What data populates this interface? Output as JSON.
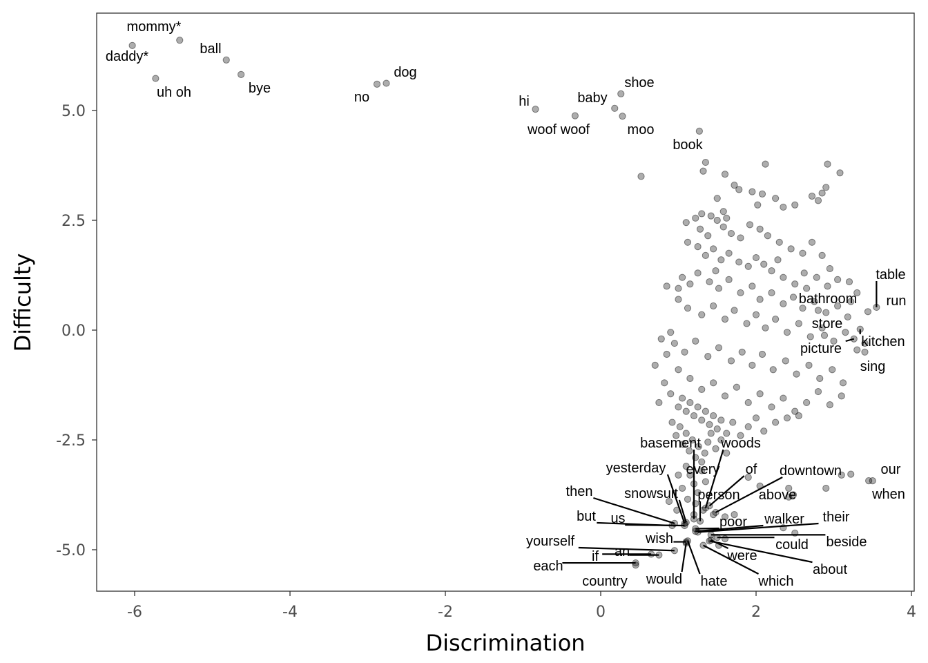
{
  "chart_data": {
    "type": "scatter",
    "title": "",
    "xlabel": "Discrimination",
    "ylabel": "Difficulty",
    "xlim": [
      -6.5,
      4
    ],
    "ylim": [
      -5.85,
      7.2
    ],
    "x_ticks": [
      -6,
      -4,
      -2,
      0,
      2,
      4
    ],
    "x_tick_labels": [
      "-6",
      "-4",
      "-2",
      "0",
      "2",
      "4"
    ],
    "y_ticks": [
      -5,
      -2.5,
      0,
      2.5,
      5
    ],
    "y_tick_labels": [
      "-5.0",
      "-2.5",
      "0.0",
      "2.5",
      "5.0"
    ],
    "grid": false,
    "point_color": "#000000",
    "labeled_points": [
      {
        "label": "mommy*",
        "x": -5.42,
        "y": 6.6
      },
      {
        "label": "daddy*",
        "x": -6.03,
        "y": 6.48
      },
      {
        "label": "uh oh",
        "x": -5.73,
        "y": 5.73
      },
      {
        "label": "ball",
        "x": -4.82,
        "y": 6.15
      },
      {
        "label": "bye",
        "x": -4.63,
        "y": 5.82
      },
      {
        "label": "dog",
        "x": -2.76,
        "y": 5.62
      },
      {
        "label": "no",
        "x": -2.88,
        "y": 5.6
      },
      {
        "label": "hi",
        "x": -0.84,
        "y": 5.03
      },
      {
        "label": "woof woof",
        "x": -0.33,
        "y": 4.88
      },
      {
        "label": "baby",
        "x": 0.18,
        "y": 5.05
      },
      {
        "label": "shoe",
        "x": 0.26,
        "y": 5.38
      },
      {
        "label": "moo",
        "x": 0.28,
        "y": 4.87
      },
      {
        "label": "book",
        "x": 1.27,
        "y": 4.53
      },
      {
        "label": "table",
        "x": 3.55,
        "y": 0.52
      },
      {
        "label": "run",
        "x": 3.44,
        "y": 0.42
      },
      {
        "label": "bathroom",
        "x": 2.8,
        "y": 0.45
      },
      {
        "label": "store",
        "x": 2.88,
        "y": -0.12
      },
      {
        "label": "kitchen",
        "x": 3.34,
        "y": 0.02
      },
      {
        "label": "picture",
        "x": 3.26,
        "y": -0.2
      },
      {
        "label": "sing",
        "x": 3.4,
        "y": -0.5
      },
      {
        "label": "our",
        "x": 3.45,
        "y": -3.43
      },
      {
        "label": "when",
        "x": 3.5,
        "y": -3.43
      },
      {
        "label": "basement",
        "x": 1.2,
        "y": -4.2
      },
      {
        "label": "woods",
        "x": 1.35,
        "y": -4.05
      },
      {
        "label": "yesterday",
        "x": 1.08,
        "y": -4.4
      },
      {
        "label": "every",
        "x": 1.2,
        "y": -4.3
      },
      {
        "label": "of",
        "x": 1.4,
        "y": -4.0
      },
      {
        "label": "downtown",
        "x": 1.48,
        "y": -4.15
      },
      {
        "label": "then",
        "x": 0.95,
        "y": -4.4
      },
      {
        "label": "snowsuit",
        "x": 1.1,
        "y": -4.38
      },
      {
        "label": "person",
        "x": 1.28,
        "y": -4.35
      },
      {
        "label": "above",
        "x": 2.42,
        "y": -3.8
      },
      {
        "label": "but",
        "x": 0.92,
        "y": -4.45
      },
      {
        "label": "us",
        "x": 1.08,
        "y": -4.45
      },
      {
        "label": "poor",
        "x": 1.22,
        "y": -4.52
      },
      {
        "label": "walker",
        "x": 1.22,
        "y": -4.58
      },
      {
        "label": "their",
        "x": 1.25,
        "y": -4.6
      },
      {
        "label": "yourself",
        "x": 0.95,
        "y": -5.02
      },
      {
        "label": "wish",
        "x": 1.1,
        "y": -4.82
      },
      {
        "label": "could",
        "x": 1.5,
        "y": -4.72
      },
      {
        "label": "beside",
        "x": 1.42,
        "y": -4.66
      },
      {
        "label": "if",
        "x": 0.65,
        "y": -5.1
      },
      {
        "label": "an",
        "x": 0.75,
        "y": -5.12
      },
      {
        "label": "were",
        "x": 1.42,
        "y": -4.78
      },
      {
        "label": "about",
        "x": 1.4,
        "y": -4.8
      },
      {
        "label": "each",
        "x": 0.45,
        "y": -5.3
      },
      {
        "label": "would",
        "x": 1.1,
        "y": -4.85
      },
      {
        "label": "hate",
        "x": 1.12,
        "y": -4.8
      },
      {
        "label": "which",
        "x": 1.32,
        "y": -4.9
      },
      {
        "label": "country",
        "x": 0.45,
        "y": -5.35
      }
    ],
    "unlabeled_points": [
      [
        0.52,
        3.5
      ],
      [
        1.32,
        3.62
      ],
      [
        1.35,
        3.82
      ],
      [
        1.6,
        3.55
      ],
      [
        2.12,
        3.78
      ],
      [
        2.92,
        3.78
      ],
      [
        3.08,
        3.58
      ],
      [
        1.72,
        3.3
      ],
      [
        1.78,
        3.2
      ],
      [
        1.95,
        3.15
      ],
      [
        2.08,
        3.1
      ],
      [
        2.02,
        2.85
      ],
      [
        2.25,
        3.0
      ],
      [
        2.35,
        2.8
      ],
      [
        2.5,
        2.85
      ],
      [
        2.72,
        3.05
      ],
      [
        2.8,
        2.95
      ],
      [
        2.85,
        3.12
      ],
      [
        2.9,
        3.25
      ],
      [
        1.5,
        3.0
      ],
      [
        1.1,
        2.45
      ],
      [
        1.22,
        2.55
      ],
      [
        1.3,
        2.65
      ],
      [
        1.42,
        2.6
      ],
      [
        1.5,
        2.5
      ],
      [
        1.58,
        2.35
      ],
      [
        1.68,
        2.2
      ],
      [
        1.8,
        2.1
      ],
      [
        1.92,
        2.4
      ],
      [
        2.05,
        2.3
      ],
      [
        2.15,
        2.15
      ],
      [
        2.3,
        2.0
      ],
      [
        2.45,
        1.85
      ],
      [
        2.6,
        1.75
      ],
      [
        1.12,
        2.0
      ],
      [
        1.25,
        1.9
      ],
      [
        1.35,
        1.7
      ],
      [
        1.45,
        1.85
      ],
      [
        1.55,
        1.6
      ],
      [
        1.65,
        1.75
      ],
      [
        1.78,
        1.55
      ],
      [
        1.9,
        1.45
      ],
      [
        2.0,
        1.65
      ],
      [
        2.1,
        1.5
      ],
      [
        2.2,
        1.35
      ],
      [
        2.35,
        1.2
      ],
      [
        2.5,
        1.05
      ],
      [
        2.65,
        0.95
      ],
      [
        2.78,
        1.2
      ],
      [
        2.92,
        1.0
      ],
      [
        3.05,
        1.15
      ],
      [
        3.2,
        1.1
      ],
      [
        1.05,
        1.2
      ],
      [
        1.15,
        1.05
      ],
      [
        1.25,
        1.3
      ],
      [
        1.4,
        1.1
      ],
      [
        1.52,
        0.95
      ],
      [
        1.65,
        1.15
      ],
      [
        1.8,
        0.85
      ],
      [
        1.95,
        1.0
      ],
      [
        2.05,
        0.7
      ],
      [
        2.2,
        0.85
      ],
      [
        2.35,
        0.6
      ],
      [
        2.48,
        0.75
      ],
      [
        2.6,
        0.5
      ],
      [
        2.75,
        0.65
      ],
      [
        2.9,
        0.4
      ],
      [
        3.05,
        0.55
      ],
      [
        3.18,
        0.3
      ],
      [
        1.0,
        0.7
      ],
      [
        1.12,
        0.5
      ],
      [
        1.3,
        0.35
      ],
      [
        1.45,
        0.55
      ],
      [
        1.6,
        0.25
      ],
      [
        1.72,
        0.45
      ],
      [
        1.88,
        0.15
      ],
      [
        2.0,
        0.35
      ],
      [
        2.12,
        0.05
      ],
      [
        2.25,
        0.25
      ],
      [
        2.4,
        -0.05
      ],
      [
        2.55,
        0.15
      ],
      [
        2.7,
        -0.15
      ],
      [
        2.85,
        0.05
      ],
      [
        3.0,
        -0.25
      ],
      [
        3.15,
        -0.05
      ],
      [
        0.95,
        -0.3
      ],
      [
        1.08,
        -0.5
      ],
      [
        1.22,
        -0.25
      ],
      [
        1.38,
        -0.6
      ],
      [
        1.52,
        -0.4
      ],
      [
        1.68,
        -0.7
      ],
      [
        1.82,
        -0.5
      ],
      [
        1.95,
        -0.8
      ],
      [
        2.08,
        -0.55
      ],
      [
        2.22,
        -0.9
      ],
      [
        2.38,
        -0.7
      ],
      [
        2.52,
        -1.0
      ],
      [
        2.68,
        -0.8
      ],
      [
        2.82,
        -1.1
      ],
      [
        2.98,
        -0.9
      ],
      [
        3.12,
        -1.2
      ],
      [
        0.78,
        -0.2
      ],
      [
        0.85,
        -0.55
      ],
      [
        1.0,
        -0.9
      ],
      [
        1.15,
        -1.1
      ],
      [
        1.3,
        -1.35
      ],
      [
        1.45,
        -1.2
      ],
      [
        1.6,
        -1.5
      ],
      [
        1.75,
        -1.3
      ],
      [
        1.9,
        -1.65
      ],
      [
        2.05,
        -1.45
      ],
      [
        2.2,
        -1.75
      ],
      [
        2.35,
        -1.55
      ],
      [
        2.5,
        -1.85
      ],
      [
        2.65,
        -1.65
      ],
      [
        2.8,
        -1.4
      ],
      [
        2.95,
        -1.7
      ],
      [
        3.1,
        -1.5
      ],
      [
        0.75,
        -1.65
      ],
      [
        0.9,
        -1.45
      ],
      [
        1.0,
        -1.75
      ],
      [
        1.05,
        -1.55
      ],
      [
        1.1,
        -1.85
      ],
      [
        1.15,
        -1.65
      ],
      [
        1.2,
        -1.95
      ],
      [
        1.25,
        -1.75
      ],
      [
        1.3,
        -2.05
      ],
      [
        1.35,
        -1.85
      ],
      [
        1.4,
        -2.15
      ],
      [
        1.45,
        -1.95
      ],
      [
        1.5,
        -2.25
      ],
      [
        1.55,
        -2.05
      ],
      [
        1.62,
        -2.35
      ],
      [
        1.7,
        -2.1
      ],
      [
        1.8,
        -2.4
      ],
      [
        1.9,
        -2.2
      ],
      [
        2.0,
        -2.0
      ],
      [
        2.1,
        -2.3
      ],
      [
        2.25,
        -2.1
      ],
      [
        2.4,
        -2.0
      ],
      [
        2.55,
        -1.95
      ],
      [
        0.7,
        -0.8
      ],
      [
        0.82,
        -1.2
      ],
      [
        0.92,
        -2.1
      ],
      [
        0.97,
        -2.4
      ],
      [
        1.02,
        -2.2
      ],
      [
        1.06,
        -2.6
      ],
      [
        1.1,
        -2.35
      ],
      [
        1.14,
        -2.75
      ],
      [
        1.18,
        -2.5
      ],
      [
        1.22,
        -2.9
      ],
      [
        1.26,
        -2.65
      ],
      [
        1.3,
        -3.0
      ],
      [
        1.34,
        -2.8
      ],
      [
        1.38,
        -2.55
      ],
      [
        1.42,
        -2.35
      ],
      [
        1.48,
        -2.7
      ],
      [
        1.55,
        -2.5
      ],
      [
        1.62,
        -2.8
      ],
      [
        1.1,
        -3.1
      ],
      [
        1.15,
        -3.3
      ],
      [
        1.2,
        -3.5
      ],
      [
        1.25,
        -3.7
      ],
      [
        1.3,
        -3.2
      ],
      [
        1.35,
        -3.45
      ],
      [
        1.05,
        -3.6
      ],
      [
        1.0,
        -3.3
      ],
      [
        1.12,
        -3.85
      ],
      [
        1.22,
        -3.95
      ],
      [
        1.9,
        -3.35
      ],
      [
        2.05,
        -3.55
      ],
      [
        2.42,
        -3.6
      ],
      [
        2.48,
        -3.75
      ],
      [
        3.1,
        -3.3
      ],
      [
        3.22,
        -3.28
      ],
      [
        2.9,
        -3.6
      ],
      [
        0.88,
        -3.9
      ],
      [
        0.98,
        -4.1
      ],
      [
        1.32,
        -4.1
      ],
      [
        1.45,
        -4.2
      ],
      [
        1.6,
        -4.25
      ],
      [
        1.72,
        -4.2
      ],
      [
        2.35,
        -4.5
      ],
      [
        2.5,
        -4.62
      ],
      [
        1.52,
        -4.9
      ],
      [
        1.6,
        -4.75
      ],
      [
        0.9,
        -0.05
      ],
      [
        1.0,
        0.95
      ],
      [
        0.85,
        1.0
      ],
      [
        1.58,
        2.7
      ],
      [
        1.62,
        2.55
      ],
      [
        1.28,
        2.3
      ],
      [
        1.38,
        2.15
      ],
      [
        1.48,
        1.35
      ],
      [
        2.28,
        1.6
      ],
      [
        2.62,
        1.3
      ],
      [
        2.72,
        2.0
      ],
      [
        2.85,
        1.7
      ],
      [
        2.95,
        1.4
      ],
      [
        3.3,
        0.85
      ],
      [
        3.22,
        0.65
      ],
      [
        3.3,
        -0.45
      ],
      [
        3.4,
        -0.3
      ]
    ]
  }
}
